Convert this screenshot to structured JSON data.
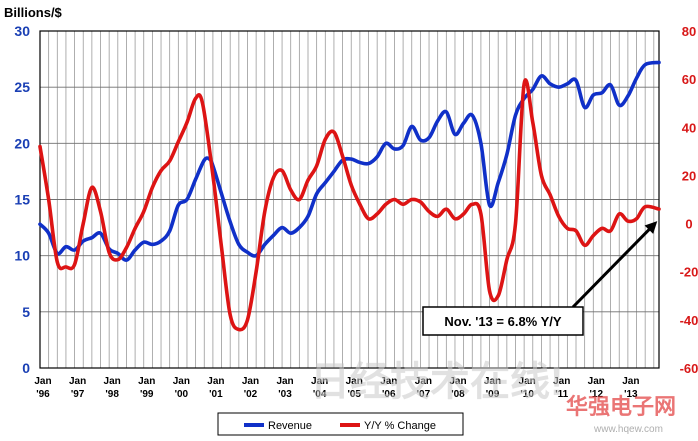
{
  "chart_data": {
    "type": "line",
    "ylabel": "Billions/$",
    "x_tick_labels": [
      [
        "Jan",
        "'96"
      ],
      [
        "Jan",
        "'97"
      ],
      [
        "Jan",
        "'98"
      ],
      [
        "Jan",
        "'99"
      ],
      [
        "Jan",
        "'00"
      ],
      [
        "Jan",
        "'01"
      ],
      [
        "Jan",
        "'02"
      ],
      [
        "Jan",
        "'03"
      ],
      [
        "Jan",
        "'04"
      ],
      [
        "Jan",
        "'05"
      ],
      [
        "Jan",
        "'06"
      ],
      [
        "Jan",
        "'07"
      ],
      [
        "Jan",
        "'08"
      ],
      [
        "Jan",
        "'09"
      ],
      [
        "Jan",
        "'10"
      ],
      [
        "Jan",
        "'11"
      ],
      [
        "Jan",
        "'12"
      ],
      [
        "Jan",
        "'13"
      ]
    ],
    "x_range": [
      1996.0,
      2013.9
    ],
    "y_left": {
      "min": 0,
      "max": 30,
      "step": 5,
      "ticks": [
        "0",
        "5",
        "10",
        "15",
        "20",
        "25",
        "30"
      ]
    },
    "y_right": {
      "min": -60,
      "max": 80,
      "step": 20,
      "ticks": [
        "-60",
        "-40",
        "-20",
        "0",
        "20",
        "40",
        "60",
        "80"
      ]
    },
    "grid": true,
    "legend_position": "bottom-center",
    "series": [
      {
        "name": "Revenue",
        "color": "#1030c8",
        "axis": "left",
        "points": [
          [
            1996.0,
            12.8
          ],
          [
            1996.25,
            12.0
          ],
          [
            1996.5,
            10.2
          ],
          [
            1996.75,
            10.8
          ],
          [
            1997.0,
            10.5
          ],
          [
            1997.25,
            11.3
          ],
          [
            1997.5,
            11.6
          ],
          [
            1997.75,
            12.0
          ],
          [
            1998.0,
            10.6
          ],
          [
            1998.25,
            10.2
          ],
          [
            1998.5,
            9.6
          ],
          [
            1998.75,
            10.5
          ],
          [
            1999.0,
            11.2
          ],
          [
            1999.25,
            11.0
          ],
          [
            1999.5,
            11.3
          ],
          [
            1999.75,
            12.2
          ],
          [
            2000.0,
            14.5
          ],
          [
            2000.25,
            15.0
          ],
          [
            2000.5,
            16.8
          ],
          [
            2000.75,
            18.5
          ],
          [
            2000.9,
            18.6
          ],
          [
            2001.0,
            18.0
          ],
          [
            2001.25,
            15.5
          ],
          [
            2001.5,
            13.0
          ],
          [
            2001.75,
            11.0
          ],
          [
            2002.0,
            10.3
          ],
          [
            2002.25,
            10.0
          ],
          [
            2002.5,
            11.0
          ],
          [
            2002.75,
            11.8
          ],
          [
            2003.0,
            12.5
          ],
          [
            2003.25,
            12.0
          ],
          [
            2003.5,
            12.5
          ],
          [
            2003.75,
            13.5
          ],
          [
            2004.0,
            15.5
          ],
          [
            2004.25,
            16.5
          ],
          [
            2004.5,
            17.5
          ],
          [
            2004.75,
            18.5
          ],
          [
            2005.0,
            18.6
          ],
          [
            2005.25,
            18.3
          ],
          [
            2005.5,
            18.2
          ],
          [
            2005.75,
            18.8
          ],
          [
            2006.0,
            20.0
          ],
          [
            2006.25,
            19.5
          ],
          [
            2006.5,
            19.8
          ],
          [
            2006.75,
            21.5
          ],
          [
            2007.0,
            20.3
          ],
          [
            2007.25,
            20.5
          ],
          [
            2007.5,
            22.0
          ],
          [
            2007.75,
            22.8
          ],
          [
            2008.0,
            20.8
          ],
          [
            2008.25,
            21.8
          ],
          [
            2008.5,
            22.5
          ],
          [
            2008.75,
            20.0
          ],
          [
            2009.0,
            14.5
          ],
          [
            2009.25,
            16.5
          ],
          [
            2009.5,
            19.0
          ],
          [
            2009.75,
            22.5
          ],
          [
            2010.0,
            24.0
          ],
          [
            2010.25,
            24.8
          ],
          [
            2010.5,
            26.0
          ],
          [
            2010.75,
            25.3
          ],
          [
            2011.0,
            25.0
          ],
          [
            2011.25,
            25.3
          ],
          [
            2011.5,
            25.6
          ],
          [
            2011.75,
            23.2
          ],
          [
            2012.0,
            24.3
          ],
          [
            2012.25,
            24.5
          ],
          [
            2012.5,
            25.2
          ],
          [
            2012.75,
            23.4
          ],
          [
            2013.0,
            24.2
          ],
          [
            2013.25,
            25.8
          ],
          [
            2013.5,
            27.0
          ],
          [
            2013.9,
            27.2
          ]
        ]
      },
      {
        "name": "Y/Y % Change",
        "color": "#dd1414",
        "axis": "right",
        "points": [
          [
            1996.0,
            32
          ],
          [
            1996.25,
            10
          ],
          [
            1996.5,
            -16
          ],
          [
            1996.75,
            -18
          ],
          [
            1997.0,
            -17
          ],
          [
            1997.25,
            0
          ],
          [
            1997.5,
            15
          ],
          [
            1997.75,
            5
          ],
          [
            1998.0,
            -12
          ],
          [
            1998.25,
            -15
          ],
          [
            1998.5,
            -10
          ],
          [
            1998.75,
            -2
          ],
          [
            1999.0,
            5
          ],
          [
            1999.25,
            15
          ],
          [
            1999.5,
            22
          ],
          [
            1999.75,
            26
          ],
          [
            2000.0,
            34
          ],
          [
            2000.25,
            42
          ],
          [
            2000.5,
            52
          ],
          [
            2000.7,
            50
          ],
          [
            2001.0,
            20
          ],
          [
            2001.25,
            -10
          ],
          [
            2001.5,
            -38
          ],
          [
            2001.75,
            -44
          ],
          [
            2002.0,
            -40
          ],
          [
            2002.25,
            -20
          ],
          [
            2002.5,
            5
          ],
          [
            2002.75,
            19
          ],
          [
            2003.0,
            22
          ],
          [
            2003.25,
            14
          ],
          [
            2003.5,
            10
          ],
          [
            2003.75,
            18
          ],
          [
            2004.0,
            24
          ],
          [
            2004.25,
            35
          ],
          [
            2004.5,
            38
          ],
          [
            2004.75,
            28
          ],
          [
            2005.0,
            16
          ],
          [
            2005.25,
            8
          ],
          [
            2005.5,
            2
          ],
          [
            2005.75,
            4
          ],
          [
            2006.0,
            8
          ],
          [
            2006.25,
            10
          ],
          [
            2006.5,
            8
          ],
          [
            2006.75,
            10
          ],
          [
            2007.0,
            9
          ],
          [
            2007.25,
            5
          ],
          [
            2007.5,
            3
          ],
          [
            2007.75,
            6
          ],
          [
            2008.0,
            2
          ],
          [
            2008.25,
            4
          ],
          [
            2008.5,
            8
          ],
          [
            2008.75,
            4
          ],
          [
            2009.0,
            -28
          ],
          [
            2009.25,
            -30
          ],
          [
            2009.5,
            -15
          ],
          [
            2009.75,
            0
          ],
          [
            2010.0,
            58
          ],
          [
            2010.25,
            42
          ],
          [
            2010.5,
            20
          ],
          [
            2010.75,
            12
          ],
          [
            2011.0,
            3
          ],
          [
            2011.25,
            -2
          ],
          [
            2011.5,
            -3
          ],
          [
            2011.75,
            -9
          ],
          [
            2012.0,
            -5
          ],
          [
            2012.25,
            -2
          ],
          [
            2012.5,
            -3
          ],
          [
            2012.75,
            4
          ],
          [
            2013.0,
            1
          ],
          [
            2013.25,
            2
          ],
          [
            2013.5,
            7
          ],
          [
            2013.9,
            6
          ]
        ]
      }
    ],
    "annotation": {
      "text": "Nov. '13 = 6.8% Y/Y",
      "target": [
        2013.85,
        1.0
      ],
      "target_axis": "right"
    }
  },
  "watermark": {
    "main": "日经技术在线!",
    "brand": "华强电子网",
    "url": "www.hqew.com"
  }
}
